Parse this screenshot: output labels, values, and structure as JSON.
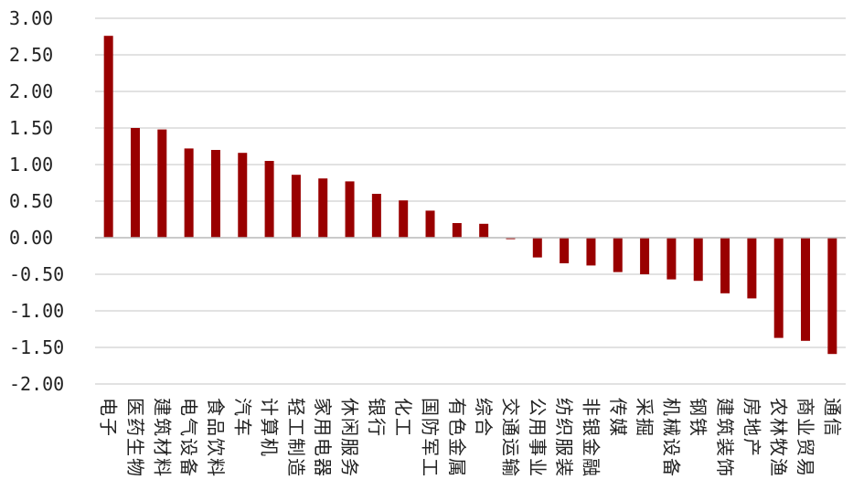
{
  "chart_data": {
    "type": "bar",
    "title": "",
    "xlabel": "",
    "ylabel": "",
    "ylim": [
      -2.0,
      3.0
    ],
    "yticks": [
      3.0,
      2.5,
      2.0,
      1.5,
      1.0,
      0.5,
      0.0,
      -0.5,
      -1.0,
      -1.5,
      -2.0
    ],
    "ytick_labels": [
      "3.00",
      "2.50",
      "2.00",
      "1.50",
      "1.00",
      "0.50",
      "0.00",
      "-0.50",
      "-1.00",
      "-1.50",
      "-2.00"
    ],
    "grid": true,
    "legend": "none",
    "categories": [
      "电子",
      "医药生物",
      "建筑材料",
      "电气设备",
      "食品饮料",
      "汽车",
      "计算机",
      "轻工制造",
      "家用电器",
      "休闲服务",
      "银行",
      "化工",
      "国防军工",
      "有色金属",
      "综合",
      "交通运输",
      "公用事业",
      "纺织服装",
      "非银金融",
      "传媒",
      "采掘",
      "机械设备",
      "钢铁",
      "建筑装饰",
      "房地产",
      "农林牧渔",
      "商业贸易",
      "通信"
    ],
    "values": [
      2.76,
      1.5,
      1.48,
      1.22,
      1.2,
      1.16,
      1.05,
      0.86,
      0.81,
      0.77,
      0.6,
      0.51,
      0.37,
      0.2,
      0.19,
      -0.02,
      -0.27,
      -0.35,
      -0.38,
      -0.47,
      -0.5,
      -0.57,
      -0.59,
      -0.76,
      -0.83,
      -1.37,
      -1.41,
      -1.59
    ],
    "bar_color": "#990000",
    "grid_color": "#d9d9d9"
  }
}
